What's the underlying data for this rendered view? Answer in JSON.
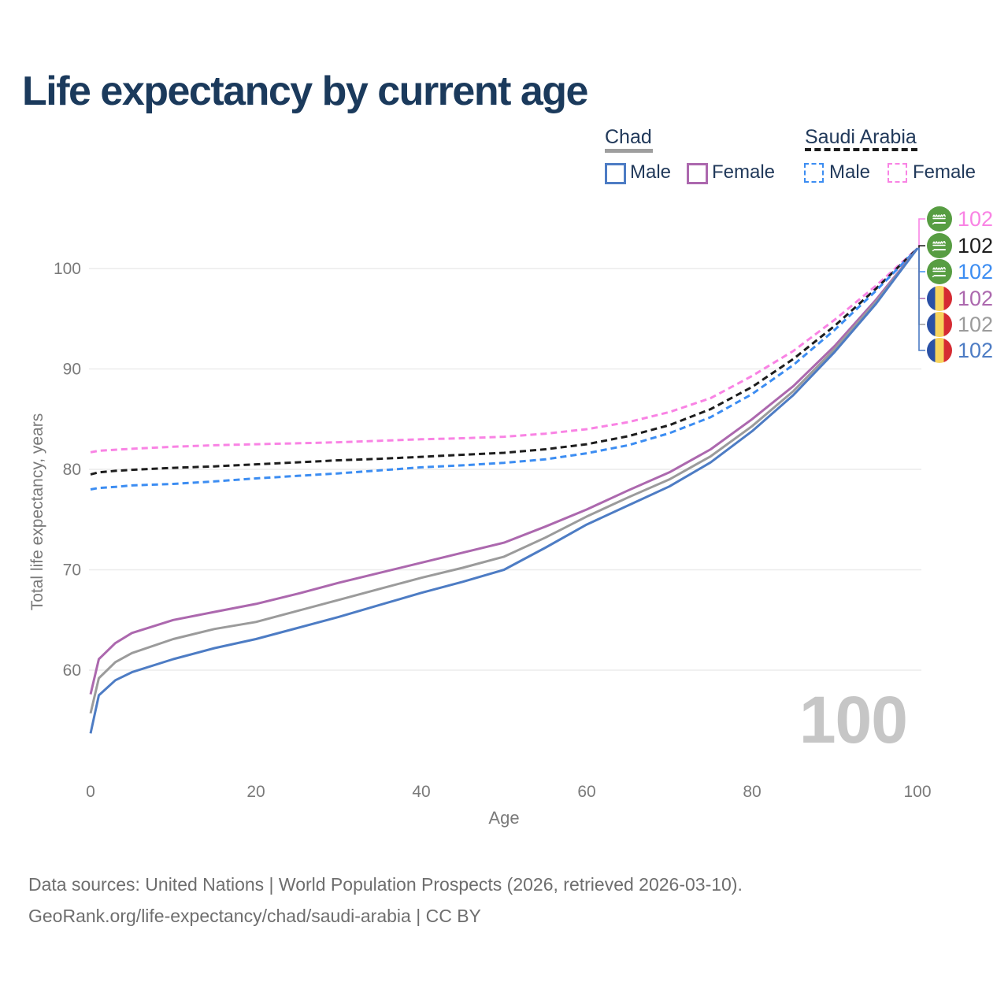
{
  "page": {
    "title": "Life expectancy by current age"
  },
  "legend": {
    "groups": [
      {
        "id": "chad",
        "label": "Chad",
        "line_style": "solid",
        "color": "#9e9e9e",
        "items": [
          {
            "label": "Male",
            "color": "#4d7cc4",
            "dashed": false
          },
          {
            "label": "Female",
            "color": "#ac68ae",
            "dashed": false
          }
        ]
      },
      {
        "id": "saudi-arabia",
        "label": "Saudi Arabia",
        "line_style": "dashed",
        "color": "#1d1d1d",
        "items": [
          {
            "label": "Male",
            "color": "#3c8df2",
            "dashed": true
          },
          {
            "label": "Female",
            "color": "#f983e4",
            "dashed": true
          }
        ]
      }
    ]
  },
  "watermark": "100",
  "footer": {
    "line1": "Data sources: United Nations | World Population Prospects (2026, retrieved 2026-03-10).",
    "line2": "GeoRank.org/life-expectancy/chad/saudi-arabia | CC BY"
  },
  "chart_data": {
    "type": "line",
    "title": "Life expectancy by current age",
    "xlabel": "Age",
    "ylabel": "Total life expectancy, years",
    "xlim": [
      0,
      100
    ],
    "ylim": [
      52,
      104
    ],
    "x_ticks": [
      0,
      20,
      40,
      60,
      80,
      100
    ],
    "y_ticks": [
      100,
      90,
      80,
      70,
      60
    ],
    "grid": "horizontal",
    "legend_position": "top-right",
    "x": [
      0,
      1,
      3,
      5,
      10,
      15,
      20,
      25,
      30,
      35,
      40,
      45,
      50,
      55,
      60,
      65,
      70,
      75,
      80,
      85,
      90,
      95,
      100
    ],
    "series": [
      {
        "id": "saudi-arabia-female",
        "name": "Saudi Arabia Female",
        "flag": "saudi-arabia",
        "color": "#f983e4",
        "dashed": true,
        "end_label": "102",
        "values": [
          81.7,
          81.85,
          81.95,
          82.05,
          82.25,
          82.4,
          82.5,
          82.6,
          82.7,
          82.85,
          83,
          83.1,
          83.25,
          83.55,
          84,
          84.7,
          85.7,
          87.1,
          89.3,
          91.8,
          94.9,
          98.3,
          102
        ]
      },
      {
        "id": "saudi-arabia-total",
        "name": "Saudi Arabia Both sexes",
        "flag": "saudi-arabia",
        "color": "#1d1d1d",
        "dashed": true,
        "end_label": "102",
        "values": [
          79.5,
          79.7,
          79.85,
          79.95,
          80.15,
          80.3,
          80.5,
          80.7,
          80.9,
          81.05,
          81.25,
          81.45,
          81.65,
          82,
          82.5,
          83.3,
          84.4,
          86,
          88.2,
          91,
          94.3,
          98,
          102
        ]
      },
      {
        "id": "saudi-arabia-male",
        "name": "Saudi Arabia Male",
        "flag": "saudi-arabia",
        "color": "#3c8df2",
        "dashed": true,
        "end_label": "102",
        "values": [
          78,
          78.15,
          78.25,
          78.4,
          78.55,
          78.8,
          79.1,
          79.35,
          79.6,
          79.9,
          80.2,
          80.4,
          80.65,
          81,
          81.6,
          82.4,
          83.6,
          85.2,
          87.5,
          90.4,
          93.9,
          97.8,
          102
        ]
      },
      {
        "id": "chad-female",
        "name": "Chad Female",
        "flag": "chad",
        "color": "#ac68ae",
        "dashed": false,
        "end_label": "102",
        "values": [
          57.6,
          61.1,
          62.7,
          63.7,
          65,
          65.8,
          66.6,
          67.6,
          68.7,
          69.7,
          70.7,
          71.7,
          72.7,
          74.3,
          76,
          77.9,
          79.7,
          82,
          85,
          88.3,
          92.3,
          96.9,
          102
        ]
      },
      {
        "id": "chad-total",
        "name": "Chad Both sexes",
        "flag": "chad",
        "color": "#9b9b9b",
        "dashed": false,
        "end_label": "102",
        "values": [
          55.7,
          59.2,
          60.8,
          61.7,
          63.1,
          64.1,
          64.8,
          65.9,
          67,
          68.1,
          69.2,
          70.2,
          71.3,
          73.2,
          75.3,
          77.2,
          79,
          81.3,
          84.3,
          87.8,
          92,
          96.7,
          102
        ]
      },
      {
        "id": "chad-male",
        "name": "Chad Male",
        "flag": "chad",
        "color": "#4d7cc4",
        "dashed": false,
        "end_label": "102",
        "values": [
          53.7,
          57.5,
          59,
          59.8,
          61.1,
          62.2,
          63.1,
          64.2,
          65.3,
          66.5,
          67.7,
          68.8,
          70,
          72.2,
          74.5,
          76.4,
          78.3,
          80.7,
          83.8,
          87.4,
          91.7,
          96.5,
          102
        ]
      }
    ]
  }
}
